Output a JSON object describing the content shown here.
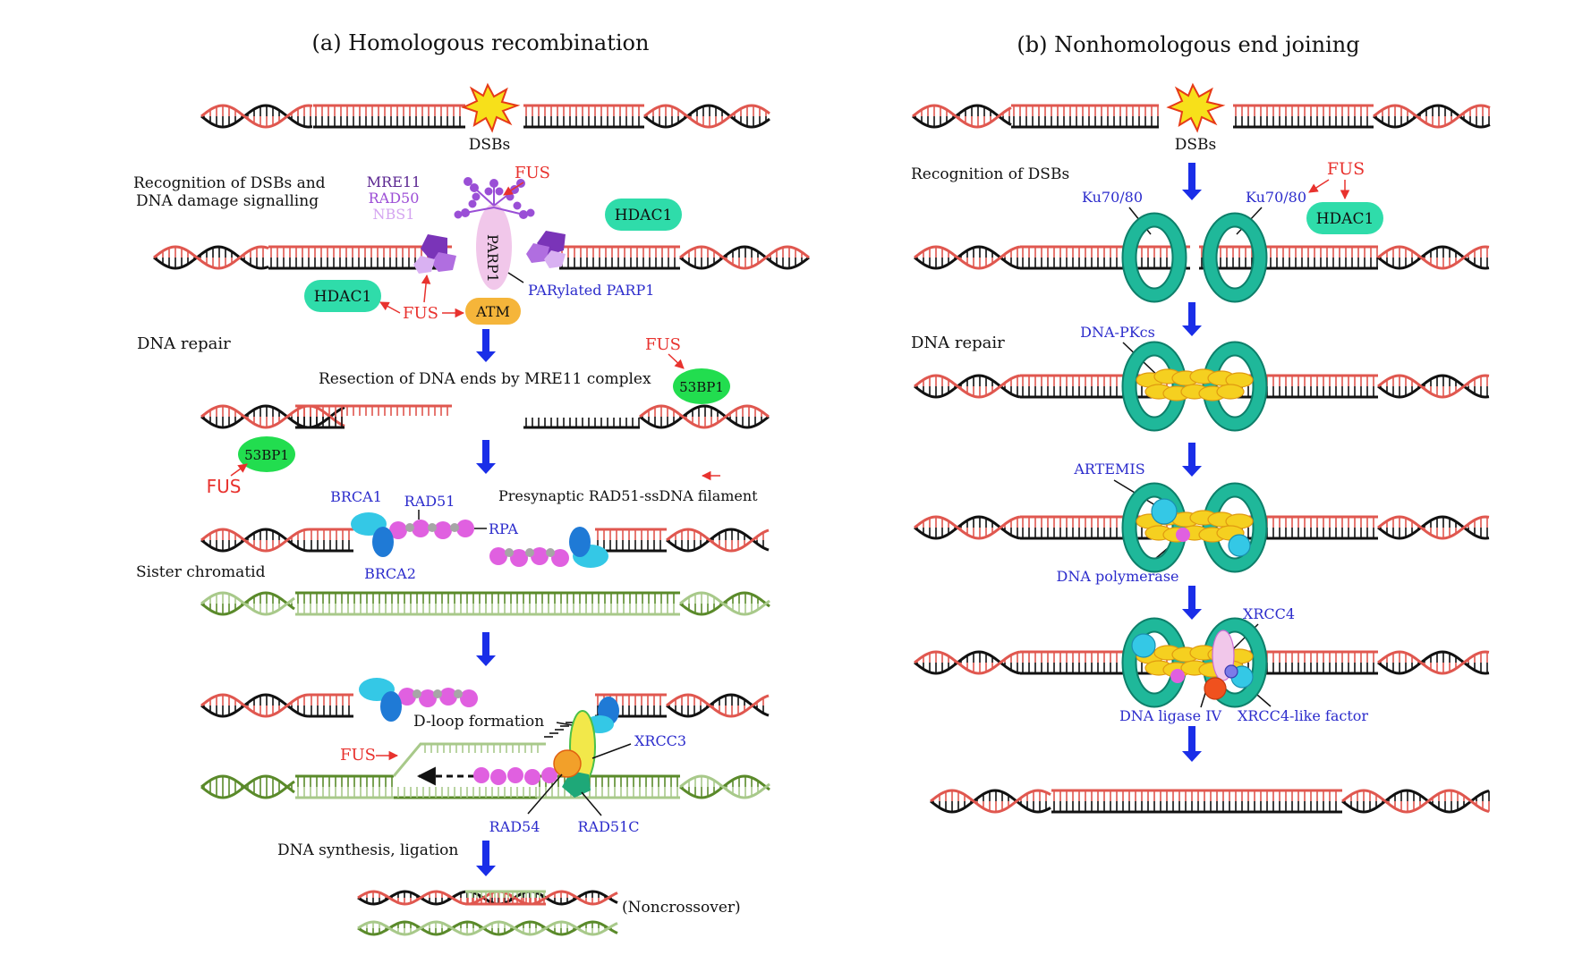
{
  "panel_a": {
    "title": "(a) Homologous recombination",
    "dsb_label": "DSBs",
    "step_recognition_line1": "Recognition of DSBs and",
    "step_recognition_line2": "DNA damage signalling",
    "mre11": "MRE11",
    "rad50": "RAD50",
    "nbs1": "NBS1",
    "fus": "FUS",
    "parp1": "PARP1",
    "parylated_parp1": "PARylated PARP1",
    "hdac1": "HDAC1",
    "atm": "ATM",
    "step_dna_repair": "DNA repair",
    "step_resection": "Resection of DNA ends by MRE11 complex",
    "bp53": "53BP1",
    "brca1": "BRCA1",
    "rad51": "RAD51",
    "rpa": "RPA",
    "brca2": "BRCA2",
    "presynaptic": "Presynaptic RAD51-ssDNA filament",
    "sister_chromatid": "Sister chromatid",
    "dloop": "D-loop formation",
    "xrcc3": "XRCC3",
    "rad54": "RAD54",
    "rad51c": "RAD51C",
    "step_synthesis": "DNA synthesis, ligation",
    "noncrossover": "(Noncrossover)"
  },
  "panel_b": {
    "title": "(b) Nonhomologous end joining",
    "dsb_label": "DSBs",
    "step_recognition": "Recognition of DSBs",
    "ku_left": "Ku70/80",
    "ku_right": "Ku70/80",
    "fus": "FUS",
    "hdac1": "HDAC1",
    "step_dna_repair": "DNA repair",
    "dnapkcs": "DNA-PKcs",
    "artemis": "ARTEMIS",
    "dna_polymerase": "DNA polymerase",
    "xrcc4": "XRCC4",
    "ligase": "DNA ligase IV",
    "xlf": "XRCC4-like factor"
  },
  "colors": {
    "strand_black": "#111111",
    "strand_red": "#e0574f",
    "strand_green": "#5a8a2a",
    "strand_green_light": "#a8c98a",
    "arrow_blue": "#1a2ee8",
    "fus_red": "#e8322e",
    "protein_blue_text": "#2c2ccc",
    "ku_teal": "#1fb89a",
    "hdac1_green": "#2fdcaa",
    "bp53_green": "#22dd4f",
    "atm_orange": "#f5b53a",
    "rad51_magenta": "#e060e0",
    "brca_cyan": "#34c8e6",
    "brca2_blue": "#1f7ad6",
    "mre_purple": "#8a3ec8",
    "dnapk_yellow": "#f5d020",
    "parp_pink": "#f1c7ea"
  }
}
